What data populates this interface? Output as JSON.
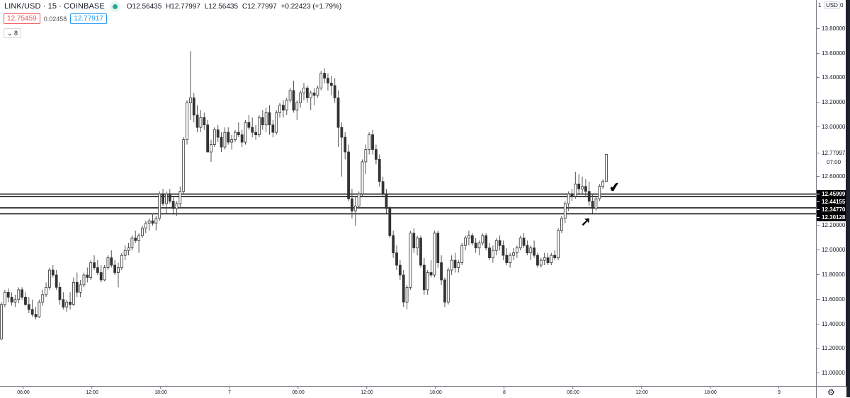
{
  "header": {
    "symbol": "LINK/USD · 15 · COINBASE",
    "status_color": "#26a69a",
    "ohlc": {
      "open": "O12.56435",
      "high": "H12.77997",
      "low": "L12.56435",
      "close": "C12.77997",
      "change": "+0.22423 (+1.79%)"
    },
    "bid": "12.75459",
    "spread": "0.02458",
    "ask": "12.77917",
    "indicators_toggle": "⌄ 8"
  },
  "price_scale": {
    "currency": "USD",
    "top_clipped_left": "1",
    "top_clipped_right": "0",
    "ticks": [
      "13.80000",
      "13.60000",
      "13.40000",
      "13.20000",
      "13.00000",
      "12.60000",
      "12.20000",
      "12.00000",
      "11.80000",
      "11.60000",
      "11.40000",
      "11.20000",
      "11.00000"
    ],
    "last_price": "12.77997",
    "countdown": "07:00",
    "level_labels": [
      "12.45999",
      "12.44155",
      "12.34770",
      "12.30128"
    ],
    "settings_icon": "gear-icon"
  },
  "time_scale": {
    "ticks": [
      "06:00",
      "12:00",
      "18:00",
      "7",
      "06:00",
      "12:00",
      "18:00",
      "8",
      "06:00",
      "12:00",
      "18:00",
      "9"
    ]
  },
  "annotations": {
    "checkmark": "✔",
    "arrow": "➚"
  },
  "chart_data": {
    "type": "candlestick",
    "title": "LINK/USD · 15 · COINBASE",
    "interval": "15m",
    "xlabel": "",
    "ylabel": "USD",
    "ylim": [
      10.96,
      13.94
    ],
    "x_ticks": [
      "06:00",
      "12:00",
      "18:00",
      "7",
      "06:00",
      "12:00",
      "18:00",
      "8",
      "06:00",
      "12:00",
      "18:00",
      "9"
    ],
    "y_ticks": [
      11.0,
      11.2,
      11.4,
      11.6,
      11.8,
      12.0,
      12.2,
      12.4,
      12.6,
      12.8,
      13.0,
      13.2,
      13.4,
      13.6,
      13.8
    ],
    "horizontal_levels": [
      12.45999,
      12.44155,
      12.3477,
      12.30128
    ],
    "last_close": 12.77997,
    "candles_ohlc": [
      [
        11.28,
        11.58,
        11.27,
        11.56
      ],
      [
        11.56,
        11.68,
        11.54,
        11.66
      ],
      [
        11.66,
        11.69,
        11.58,
        11.62
      ],
      [
        11.62,
        11.66,
        11.55,
        11.58
      ],
      [
        11.58,
        11.64,
        11.54,
        11.6
      ],
      [
        11.6,
        11.7,
        11.57,
        11.68
      ],
      [
        11.68,
        11.7,
        11.6,
        11.62
      ],
      [
        11.62,
        11.66,
        11.55,
        11.56
      ],
      [
        11.56,
        11.62,
        11.49,
        11.52
      ],
      [
        11.52,
        11.6,
        11.46,
        11.48
      ],
      [
        11.48,
        11.54,
        11.44,
        11.46
      ],
      [
        11.46,
        11.6,
        11.45,
        11.58
      ],
      [
        11.58,
        11.68,
        11.55,
        11.64
      ],
      [
        11.64,
        11.74,
        11.62,
        11.7
      ],
      [
        11.7,
        11.86,
        11.68,
        11.84
      ],
      [
        11.84,
        11.88,
        11.78,
        11.8
      ],
      [
        11.8,
        11.84,
        11.68,
        11.7
      ],
      [
        11.7,
        11.74,
        11.56,
        11.6
      ],
      [
        11.6,
        11.66,
        11.52,
        11.54
      ],
      [
        11.54,
        11.6,
        11.5,
        11.58
      ],
      [
        11.58,
        11.66,
        11.52,
        11.56
      ],
      [
        11.56,
        11.78,
        11.55,
        11.74
      ],
      [
        11.74,
        11.82,
        11.62,
        11.66
      ],
      [
        11.66,
        11.76,
        11.62,
        11.72
      ],
      [
        11.72,
        11.82,
        11.7,
        11.8
      ],
      [
        11.8,
        11.86,
        11.74,
        11.78
      ],
      [
        11.78,
        11.92,
        11.76,
        11.9
      ],
      [
        11.9,
        11.96,
        11.84,
        11.86
      ],
      [
        11.86,
        11.92,
        11.8,
        11.82
      ],
      [
        11.82,
        11.88,
        11.74,
        11.76
      ],
      [
        11.76,
        11.88,
        11.75,
        11.86
      ],
      [
        11.86,
        11.96,
        11.84,
        11.94
      ],
      [
        11.94,
        12.0,
        11.86,
        11.88
      ],
      [
        11.88,
        11.92,
        11.8,
        11.82
      ],
      [
        11.82,
        11.9,
        11.7,
        11.86
      ],
      [
        11.86,
        11.98,
        11.84,
        11.96
      ],
      [
        11.96,
        12.04,
        11.92,
        12.0
      ],
      [
        12.0,
        12.06,
        11.96,
        12.02
      ],
      [
        12.02,
        12.12,
        12.0,
        12.1
      ],
      [
        12.1,
        12.16,
        12.06,
        12.08
      ],
      [
        12.08,
        12.14,
        11.98,
        12.12
      ],
      [
        12.12,
        12.2,
        12.1,
        12.18
      ],
      [
        12.18,
        12.24,
        12.14,
        12.22
      ],
      [
        12.22,
        12.26,
        12.16,
        12.24
      ],
      [
        12.24,
        12.3,
        12.2,
        12.22
      ],
      [
        12.22,
        12.28,
        12.16,
        12.26
      ],
      [
        12.26,
        12.48,
        12.24,
        12.46
      ],
      [
        12.46,
        12.5,
        12.36,
        12.38
      ],
      [
        12.38,
        12.48,
        12.3,
        12.46
      ],
      [
        12.46,
        12.5,
        12.38,
        12.4
      ],
      [
        12.4,
        12.44,
        12.3,
        12.34
      ],
      [
        12.34,
        12.4,
        12.28,
        12.38
      ],
      [
        12.38,
        12.52,
        12.34,
        12.48
      ],
      [
        12.48,
        12.92,
        12.46,
        12.9
      ],
      [
        12.9,
        13.22,
        12.86,
        13.2
      ],
      [
        13.2,
        13.62,
        13.06,
        13.24
      ],
      [
        13.24,
        13.28,
        13.04,
        13.1
      ],
      [
        13.1,
        13.18,
        12.96,
        13.0
      ],
      [
        13.0,
        13.14,
        12.96,
        13.08
      ],
      [
        13.08,
        13.12,
        12.98,
        13.02
      ],
      [
        13.02,
        13.06,
        12.8,
        12.8
      ],
      [
        12.8,
        12.9,
        12.72,
        12.86
      ],
      [
        12.86,
        13.0,
        12.84,
        12.98
      ],
      [
        12.98,
        13.02,
        12.88,
        12.92
      ],
      [
        12.92,
        12.96,
        12.8,
        12.84
      ],
      [
        12.84,
        13.0,
        12.82,
        12.96
      ],
      [
        12.96,
        13.0,
        12.86,
        12.88
      ],
      [
        12.88,
        12.94,
        12.82,
        12.9
      ],
      [
        12.9,
        12.98,
        12.88,
        12.96
      ],
      [
        12.96,
        13.04,
        12.92,
        12.94
      ],
      [
        12.94,
        12.98,
        12.84,
        12.88
      ],
      [
        12.88,
        13.06,
        12.86,
        13.04
      ],
      [
        13.04,
        13.1,
        12.98,
        13.0
      ],
      [
        13.0,
        13.08,
        12.92,
        12.96
      ],
      [
        12.96,
        13.02,
        12.9,
        12.94
      ],
      [
        12.94,
        13.1,
        12.92,
        13.08
      ],
      [
        13.08,
        13.14,
        12.98,
        13.02
      ],
      [
        13.02,
        13.16,
        12.96,
        13.12
      ],
      [
        13.12,
        13.18,
        12.94,
        13.02
      ],
      [
        13.02,
        13.06,
        12.92,
        12.96
      ],
      [
        12.96,
        13.14,
        12.94,
        13.12
      ],
      [
        13.12,
        13.2,
        13.08,
        13.18
      ],
      [
        13.18,
        13.22,
        13.08,
        13.14
      ],
      [
        13.14,
        13.24,
        13.1,
        13.22
      ],
      [
        13.22,
        13.32,
        13.2,
        13.3
      ],
      [
        13.3,
        13.38,
        13.12,
        13.14
      ],
      [
        13.14,
        13.22,
        13.06,
        13.2
      ],
      [
        13.2,
        13.3,
        13.16,
        13.28
      ],
      [
        13.28,
        13.36,
        13.22,
        13.32
      ],
      [
        13.32,
        13.34,
        13.2,
        13.24
      ],
      [
        13.24,
        13.3,
        13.14,
        13.28
      ],
      [
        13.28,
        13.32,
        13.18,
        13.26
      ],
      [
        13.26,
        13.34,
        13.24,
        13.32
      ],
      [
        13.32,
        13.46,
        13.3,
        13.44
      ],
      [
        13.44,
        13.48,
        13.36,
        13.4
      ],
      [
        13.4,
        13.44,
        13.3,
        13.36
      ],
      [
        13.36,
        13.42,
        13.26,
        13.34
      ],
      [
        13.34,
        13.4,
        13.2,
        13.24
      ],
      [
        13.24,
        13.3,
        12.84,
        13.0
      ],
      [
        13.0,
        13.04,
        12.6,
        12.92
      ],
      [
        12.92,
        12.96,
        12.74,
        12.8
      ],
      [
        12.8,
        12.86,
        12.4,
        12.42
      ],
      [
        12.42,
        12.5,
        12.26,
        12.32
      ],
      [
        12.32,
        12.44,
        12.2,
        12.36
      ],
      [
        12.36,
        12.48,
        12.34,
        12.46
      ],
      [
        12.46,
        12.74,
        12.44,
        12.72
      ],
      [
        12.72,
        12.86,
        12.62,
        12.82
      ],
      [
        12.82,
        12.96,
        12.78,
        12.94
      ],
      [
        12.94,
        12.98,
        12.78,
        12.82
      ],
      [
        12.82,
        12.86,
        12.7,
        12.74
      ],
      [
        12.74,
        12.78,
        12.52,
        12.56
      ],
      [
        12.56,
        12.6,
        12.44,
        12.46
      ],
      [
        12.46,
        12.5,
        12.3,
        12.34
      ],
      [
        12.34,
        12.36,
        12.1,
        12.12
      ],
      [
        12.12,
        12.16,
        11.94,
        11.98
      ],
      [
        11.98,
        12.04,
        11.84,
        11.88
      ],
      [
        11.88,
        11.92,
        11.76,
        11.8
      ],
      [
        11.8,
        11.84,
        11.54,
        11.58
      ],
      [
        11.58,
        11.72,
        11.52,
        11.7
      ],
      [
        11.7,
        12.16,
        11.68,
        12.14
      ],
      [
        12.14,
        12.18,
        11.98,
        12.02
      ],
      [
        12.02,
        12.12,
        11.96,
        12.1
      ],
      [
        12.1,
        12.12,
        11.86,
        11.88
      ],
      [
        11.88,
        11.94,
        11.64,
        11.68
      ],
      [
        11.68,
        11.84,
        11.64,
        11.82
      ],
      [
        11.82,
        11.92,
        11.78,
        11.8
      ],
      [
        11.8,
        12.16,
        11.78,
        12.14
      ],
      [
        12.14,
        12.16,
        11.86,
        11.9
      ],
      [
        11.9,
        11.96,
        11.72,
        11.76
      ],
      [
        11.76,
        11.78,
        11.54,
        11.58
      ],
      [
        11.58,
        11.86,
        11.56,
        11.84
      ],
      [
        11.84,
        11.96,
        11.8,
        11.92
      ],
      [
        11.92,
        11.98,
        11.82,
        11.86
      ],
      [
        11.86,
        11.92,
        11.82,
        11.9
      ],
      [
        11.9,
        12.06,
        11.88,
        12.04
      ],
      [
        12.04,
        12.12,
        12.0,
        12.1
      ],
      [
        12.1,
        12.16,
        12.04,
        12.12
      ],
      [
        12.12,
        12.14,
        12.04,
        12.06
      ],
      [
        12.06,
        12.1,
        11.98,
        12.02
      ],
      [
        12.02,
        12.08,
        11.96,
        12.06
      ],
      [
        12.06,
        12.14,
        12.04,
        12.12
      ],
      [
        12.12,
        12.14,
        12.0,
        12.02
      ],
      [
        12.02,
        12.06,
        11.92,
        11.94
      ],
      [
        11.94,
        12.04,
        11.9,
        12.0
      ],
      [
        12.0,
        12.1,
        11.96,
        12.08
      ],
      [
        12.08,
        12.12,
        12.0,
        12.04
      ],
      [
        12.04,
        12.08,
        11.92,
        11.96
      ],
      [
        11.96,
        12.02,
        11.88,
        11.9
      ],
      [
        11.9,
        11.98,
        11.86,
        11.96
      ],
      [
        11.96,
        12.02,
        11.92,
        11.98
      ],
      [
        11.98,
        12.04,
        11.94,
        12.02
      ],
      [
        12.02,
        12.12,
        12.0,
        12.1
      ],
      [
        12.1,
        12.14,
        12.02,
        12.04
      ],
      [
        12.04,
        12.08,
        11.96,
        11.98
      ],
      [
        11.98,
        12.04,
        11.92,
        12.02
      ],
      [
        12.02,
        12.08,
        11.94,
        11.96
      ],
      [
        11.96,
        11.98,
        11.86,
        11.88
      ],
      [
        11.88,
        11.94,
        11.86,
        11.92
      ],
      [
        11.92,
        11.98,
        11.88,
        11.94
      ],
      [
        11.94,
        11.98,
        11.88,
        11.9
      ],
      [
        11.9,
        11.98,
        11.88,
        11.96
      ],
      [
        11.96,
        12.0,
        11.92,
        11.94
      ],
      [
        11.94,
        12.18,
        11.92,
        12.16
      ],
      [
        12.16,
        12.28,
        12.14,
        12.26
      ],
      [
        12.26,
        12.4,
        12.22,
        12.38
      ],
      [
        12.38,
        12.48,
        12.32,
        12.46
      ],
      [
        12.46,
        12.5,
        12.4,
        12.44
      ],
      [
        12.44,
        12.64,
        12.42,
        12.54
      ],
      [
        12.54,
        12.62,
        12.46,
        12.5
      ],
      [
        12.5,
        12.6,
        12.46,
        12.52
      ],
      [
        12.52,
        12.58,
        12.44,
        12.48
      ],
      [
        12.48,
        12.56,
        12.36,
        12.4
      ],
      [
        12.4,
        12.46,
        12.3,
        12.34
      ],
      [
        12.34,
        12.44,
        12.32,
        12.42
      ],
      [
        12.42,
        12.54,
        12.4,
        12.52
      ],
      [
        12.52,
        12.58,
        12.5,
        12.56
      ],
      [
        12.56,
        12.78,
        12.56,
        12.78
      ]
    ]
  }
}
